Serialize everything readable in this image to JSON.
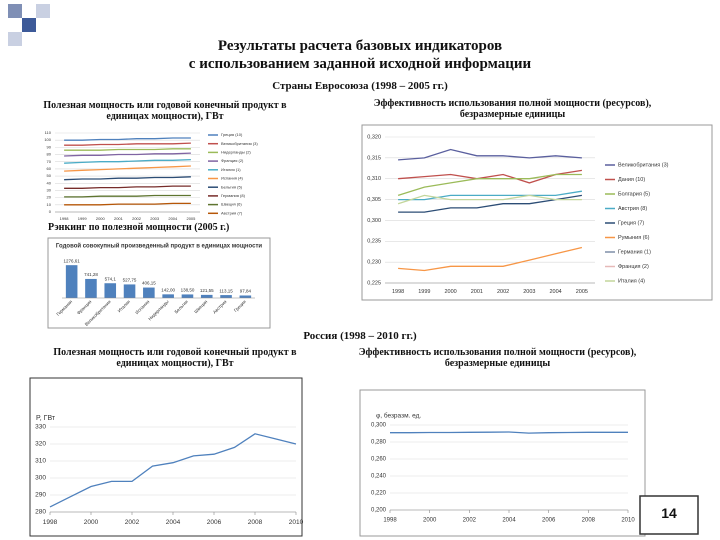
{
  "title_line1": "Результаты расчета базовых индикаторов",
  "title_line2": "с использованием заданной исходной информации",
  "eu_heading": "Страны Евросоюза (1998 – 2005 гг.)",
  "eu_power_label": "Полезная мощность или годовой конечный продукт в единицах мощности), ГВт",
  "eu_eff_label": "Эффективность использования полной мощности (ресурсов), безразмерные единицы",
  "ranking_label": "Рэнкинг по полезной мощности (2005 г.)",
  "ru_heading": "Россия (1998 – 2010 гг.)",
  "ru_power_label": "Полезная мощность или годовой конечный продукт в единицах мощности), ГВт",
  "ru_eff_label": "Эффективность использования полной мощности (ресурсов), безразмерные единицы",
  "page_number": "14",
  "chart_data": [
    {
      "type": "line",
      "categories": [
        "1998",
        "1999",
        "2000",
        "2001",
        "2002",
        "2003",
        "2004",
        "2005"
      ],
      "ylim": [
        0,
        110
      ],
      "yticks": [
        0,
        10,
        20,
        30,
        40,
        50,
        60,
        70,
        80,
        90,
        100,
        110
      ],
      "grid": true,
      "legend": "right",
      "series": [
        {
          "name": "Греция (10)",
          "color": "#4f81bd",
          "values": [
            100,
            100,
            101,
            101,
            102,
            102,
            103,
            103
          ]
        },
        {
          "name": "Великобритания (3)",
          "color": "#c0504d",
          "values": [
            93,
            93,
            94,
            94,
            95,
            95,
            95,
            96
          ]
        },
        {
          "name": "Нидерланды (2)",
          "color": "#9bbb59",
          "values": [
            86,
            86,
            86,
            87,
            87,
            87,
            88,
            88
          ]
        },
        {
          "name": "Франция (2)",
          "color": "#8064a2",
          "values": [
            78,
            79,
            79,
            80,
            80,
            81,
            81,
            82
          ]
        },
        {
          "name": "Италия (1)",
          "color": "#4bacc6",
          "values": [
            68,
            69,
            70,
            70,
            71,
            72,
            72,
            73
          ]
        },
        {
          "name": "Испания (4)",
          "color": "#f79646",
          "values": [
            57,
            58,
            59,
            60,
            61,
            62,
            63,
            64
          ]
        },
        {
          "name": "Бельгия (5)",
          "color": "#2c4d75",
          "values": [
            45,
            46,
            46,
            47,
            47,
            48,
            48,
            49
          ]
        },
        {
          "name": "Германия (8)",
          "color": "#772c2a",
          "values": [
            33,
            33,
            34,
            34,
            35,
            35,
            36,
            36
          ]
        },
        {
          "name": "Швеция (6)",
          "color": "#5f7530",
          "values": [
            21,
            21,
            22,
            22,
            22,
            23,
            23,
            23
          ]
        },
        {
          "name": "Австрия (7)",
          "color": "#b65708",
          "values": [
            10,
            10,
            10,
            11,
            11,
            11,
            12,
            12
          ]
        }
      ]
    },
    {
      "type": "bar",
      "title": "Годовой совокупный произведенный продукт в единицах мощности",
      "categories": [
        "Германия",
        "Франция",
        "Великобритания",
        "Италия",
        "Испания",
        "Нидерланды",
        "Бельгия",
        "Швеция",
        "Австрия",
        "Греция"
      ],
      "values": [
        1276.61,
        741.28,
        574.1,
        527.75,
        406.15,
        142,
        138.5,
        121.55,
        113.15,
        97.84
      ],
      "value_labels": [
        "1276,61",
        "741,28",
        "574,1",
        "527,75",
        "406,15",
        "142,00",
        "138,50",
        "121,55",
        "113,15",
        "97,84"
      ],
      "color": "#4f81bd",
      "ylim": [
        0,
        1400
      ]
    },
    {
      "type": "line",
      "categories": [
        "1998",
        "1999",
        "2000",
        "2001",
        "2002",
        "2003",
        "2004",
        "2005"
      ],
      "ylim": [
        0.225,
        0.32
      ],
      "yticks": [
        {
          "value": 0.225,
          "label": "0,225"
        },
        {
          "value": 0.23,
          "label": "0,230"
        },
        {
          "value": 0.235,
          "label": "0,235"
        },
        {
          "value": 0.3,
          "label": "0,300"
        },
        {
          "value": 0.305,
          "label": "0,305"
        },
        {
          "value": 0.31,
          "label": "0,310"
        },
        {
          "value": 0.315,
          "label": "0,315"
        },
        {
          "value": 0.32,
          "label": "0,320"
        }
      ],
      "grid": true,
      "legend": "right",
      "series": [
        {
          "name": "Великобритания (3)",
          "color": "#5a5f9e",
          "values": [
            0.3145,
            0.315,
            0.317,
            0.3155,
            0.3155,
            0.315,
            0.3155,
            0.315
          ]
        },
        {
          "name": "Дания (10)",
          "color": "#c0504d",
          "values": [
            0.31,
            0.3105,
            0.311,
            0.31,
            0.311,
            0.309,
            0.311,
            0.312
          ]
        },
        {
          "name": "Болгария (5)",
          "color": "#9bbb59",
          "values": [
            0.306,
            0.308,
            0.309,
            0.31,
            0.31,
            0.31,
            0.311,
            0.311
          ]
        },
        {
          "name": "Австрия (8)",
          "color": "#4bacc6",
          "values": [
            0.305,
            0.305,
            0.306,
            0.306,
            0.306,
            0.306,
            0.306,
            0.307
          ]
        },
        {
          "name": "Греция (7)",
          "color": "#2c4d75",
          "values": [
            0.302,
            0.302,
            0.303,
            0.303,
            0.304,
            0.304,
            0.305,
            0.306
          ]
        },
        {
          "name": "Румыния (6)",
          "color": "#f79646",
          "values": [
            0.2285,
            0.228,
            0.229,
            0.229,
            0.229,
            0.2305,
            0.232,
            0.2335
          ]
        },
        {
          "name": "Германия (1)",
          "color": "#7f8fa9",
          "values": [
            null,
            null,
            null,
            null,
            null,
            null,
            null,
            null
          ]
        },
        {
          "name": "Франция (2)",
          "color": "#e6b9b8",
          "values": [
            null,
            null,
            null,
            null,
            null,
            null,
            null,
            null
          ]
        },
        {
          "name": "Италия (4)",
          "color": "#c3d69b",
          "values": [
            0.304,
            0.306,
            0.305,
            0.305,
            0.305,
            0.306,
            0.305,
            0.305
          ]
        }
      ]
    },
    {
      "type": "line",
      "ylabel": "P, ГВт",
      "x": [
        1998,
        1999,
        2000,
        2001,
        2002,
        2003,
        2004,
        2005,
        2006,
        2007,
        2008,
        2009,
        2010
      ],
      "xlim": [
        1998,
        2010
      ],
      "xticks": [
        1998,
        2000,
        2002,
        2004,
        2006,
        2008,
        2010
      ],
      "ylim": [
        280,
        330
      ],
      "yticks": [
        280,
        290,
        300,
        310,
        320,
        330
      ],
      "grid": true,
      "series": [
        {
          "name": "P",
          "color": "#4f81bd",
          "values": [
            283,
            289,
            295,
            298,
            298,
            307,
            309,
            313,
            314,
            318,
            326,
            323,
            320
          ]
        }
      ]
    },
    {
      "type": "line",
      "ylabel": "φ, безразм. ед.",
      "x": [
        1998,
        1999,
        2000,
        2001,
        2002,
        2003,
        2004,
        2005,
        2006,
        2007,
        2008,
        2009,
        2010
      ],
      "xlim": [
        1998,
        2010
      ],
      "xticks": [
        1998,
        2000,
        2002,
        2004,
        2006,
        2008,
        2010
      ],
      "ylim": [
        0.2,
        0.3
      ],
      "yticks": [
        {
          "value": 0.2,
          "label": "0,200"
        },
        {
          "value": 0.22,
          "label": "0,220"
        },
        {
          "value": 0.24,
          "label": "0,240"
        },
        {
          "value": 0.26,
          "label": "0,260"
        },
        {
          "value": 0.28,
          "label": "0,280"
        },
        {
          "value": 0.3,
          "label": "0,300"
        }
      ],
      "grid": true,
      "series": [
        {
          "name": "φ",
          "color": "#4f81bd",
          "values": [
            0.291,
            0.291,
            0.2912,
            0.2912,
            0.2914,
            0.2915,
            0.2918,
            0.2905,
            0.291,
            0.2912,
            0.2914,
            0.2914,
            0.2914
          ]
        }
      ]
    }
  ]
}
